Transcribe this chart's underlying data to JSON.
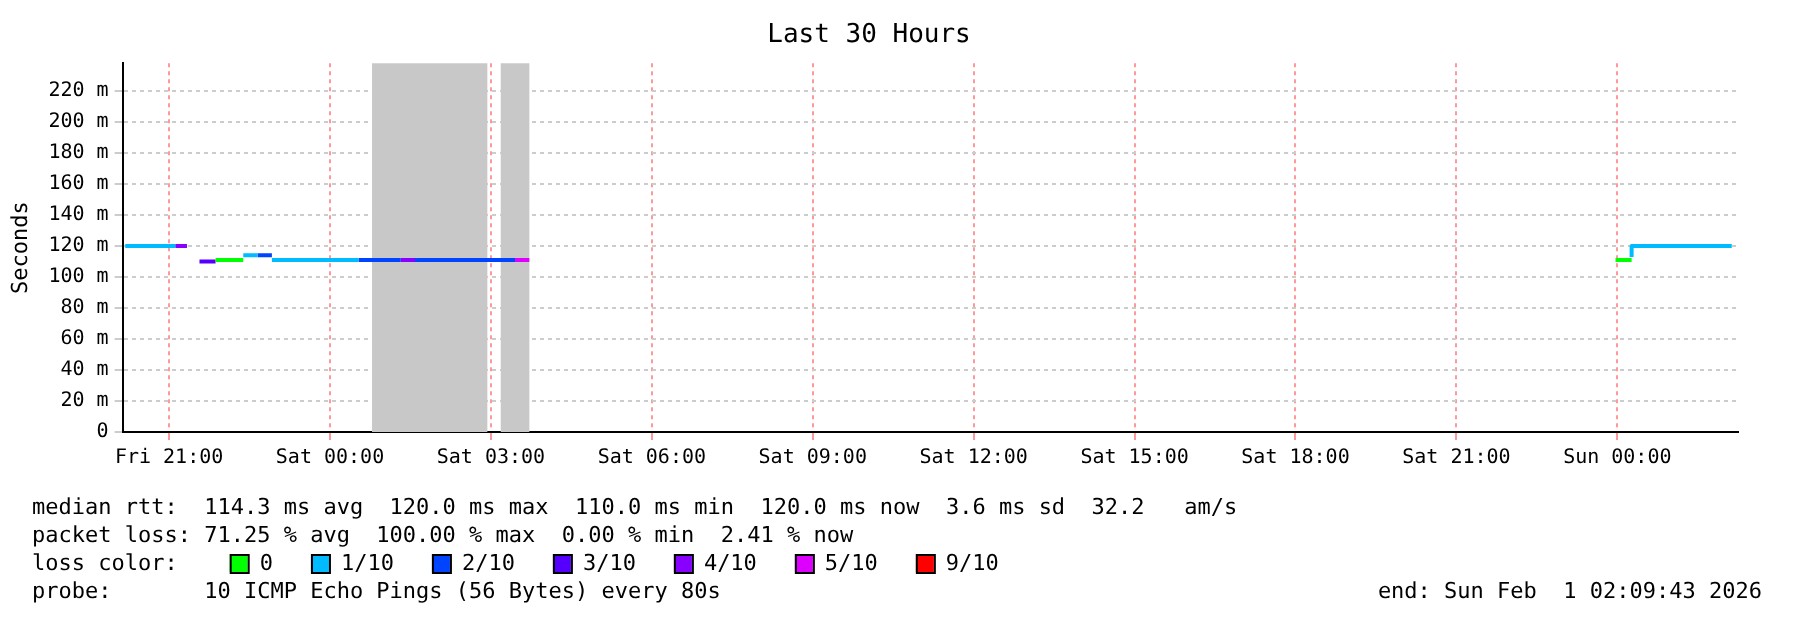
{
  "chart_data": {
    "type": "step",
    "title": "Last 30 Hours",
    "ylabel": "Seconds",
    "legend_title": "loss color:",
    "xlim": [
      "2026-01-30T20:08",
      "2026-02-01T02:15"
    ],
    "xticks": [
      {
        "value": "2026-01-30T21:00",
        "label": "Fri 21:00"
      },
      {
        "value": "2026-01-31T00:00",
        "label": "Sat 00:00"
      },
      {
        "value": "2026-01-31T03:00",
        "label": "Sat 03:00"
      },
      {
        "value": "2026-01-31T06:00",
        "label": "Sat 06:00"
      },
      {
        "value": "2026-01-31T09:00",
        "label": "Sat 09:00"
      },
      {
        "value": "2026-01-31T12:00",
        "label": "Sat 12:00"
      },
      {
        "value": "2026-01-31T15:00",
        "label": "Sat 15:00"
      },
      {
        "value": "2026-01-31T18:00",
        "label": "Sat 18:00"
      },
      {
        "value": "2026-01-31T21:00",
        "label": "Sat 21:00"
      },
      {
        "value": "2026-02-01T00:00",
        "label": "Sun 00:00"
      }
    ],
    "ylim": [
      0,
      238
    ],
    "yticks": [
      0,
      {
        "value": 20,
        "label": "20 m"
      },
      {
        "value": 40,
        "label": "40 m"
      },
      {
        "value": 60,
        "label": "60 m"
      },
      {
        "value": 80,
        "label": "80 m"
      },
      {
        "value": 100,
        "label": "100 m"
      },
      {
        "value": 120,
        "label": "120 m"
      },
      {
        "value": 140,
        "label": "140 m"
      },
      {
        "value": 160,
        "label": "160 m"
      },
      {
        "value": 180,
        "label": "180 m"
      },
      {
        "value": 200,
        "label": "200 m"
      },
      {
        "value": 220,
        "label": "220 m"
      }
    ],
    "grid": true,
    "legend": "bottom",
    "bands": [
      {
        "axis": "x",
        "from": "2026-01-31T00:47",
        "to": "2026-01-31T02:56",
        "color": "#c8c8c8"
      },
      {
        "axis": "x",
        "from": "2026-01-31T03:11",
        "to": "2026-01-31T03:43",
        "color": "#c8c8c8"
      }
    ],
    "series": [
      {
        "name": "0",
        "color": "#00ff00",
        "x": [
          "2026-01-30T21:52",
          "2026-01-30T22:23",
          "2026-01-30T22:24",
          "2026-01-31T23:58",
          "2026-02-01T00:16"
        ],
        "values": [
          111,
          111,
          null,
          111,
          111
        ]
      },
      {
        "name": "1/10",
        "color": "#00bbff",
        "x": [
          "2026-01-30T20:11",
          "2026-01-30T21:07",
          "2026-01-30T21:08",
          "2026-01-30T22:23",
          "2026-01-30T22:39",
          "2026-01-30T22:40",
          "2026-01-30T22:55",
          "2026-01-31T00:32",
          "2026-01-31T00:33",
          "2026-02-01T00:16",
          "2026-02-01T00:29",
          "2026-02-01T02:08"
        ],
        "values": [
          120,
          120,
          null,
          114,
          114,
          null,
          111,
          111,
          null,
          113,
          120,
          120
        ]
      },
      {
        "name": "2/10",
        "color": "#0044ff",
        "x": [
          "2026-01-30T22:39",
          "2026-01-30T22:55",
          "2026-01-30T22:56",
          "2026-01-31T00:32",
          "2026-01-31T01:19",
          "2026-01-31T01:20",
          "2026-01-31T01:37",
          "2026-01-31T01:53",
          "2026-01-31T03:27"
        ],
        "values": [
          114,
          114,
          null,
          111,
          111,
          null,
          112,
          111,
          111
        ]
      },
      {
        "name": "3/10",
        "color": "#5500ff",
        "x": [
          "2026-01-30T21:34",
          "2026-01-30T21:52"
        ],
        "values": [
          110,
          110
        ]
      },
      {
        "name": "4/10",
        "color": "#8800ff",
        "x": [
          "2026-01-30T21:07",
          "2026-01-30T21:20",
          "2026-01-30T21:21",
          "2026-01-31T01:19",
          "2026-01-31T01:37"
        ],
        "values": [
          120,
          120,
          null,
          111,
          111
        ]
      },
      {
        "name": "5/10",
        "color": "#dd00ff",
        "x": [
          "2026-01-31T03:27",
          "2026-01-31T03:43"
        ],
        "values": [
          111,
          111
        ]
      },
      {
        "name": "9/10",
        "color": "#ff0000"
      }
    ],
    "annotations": [
      "median rtt:  114.3 ms avg  120.0 ms max  110.0 ms min  120.0 ms now  3.6 ms sd  32.2   am/s",
      "packet loss: 71.25 % avg  100.00 % max  0.00 % min  2.41 % now",
      "probe:       10 ICMP Echo Pings (56 Bytes) every 80s",
      "end: Sun Feb  1 02:09:43 2026"
    ]
  }
}
